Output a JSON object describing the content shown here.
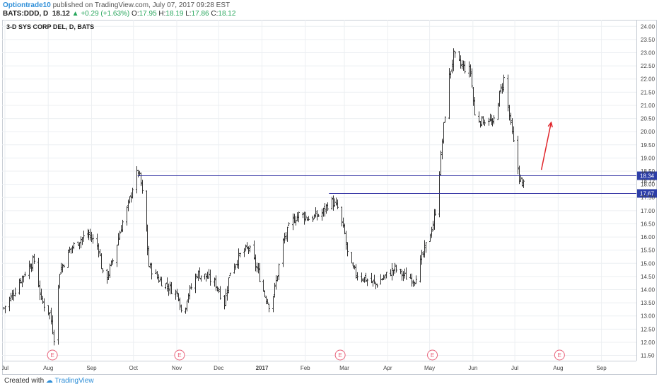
{
  "header": {
    "author": "Optiontrade10",
    "published": "published on TradingView.com, July 07, 2017 09:28 EST",
    "symbol": "BATS:DDD, D",
    "last": "18.12",
    "change_arrow": "▲",
    "change": "+0.29 (+1.63%)",
    "o_label": "O:",
    "o_value": "17.95",
    "h_label": "H:",
    "h_value": "18.19",
    "l_label": "L:",
    "l_value": "17.86",
    "c_label": "C:",
    "c_value": "18.12"
  },
  "footer": {
    "created_with": "Created with",
    "brand": "TradingView"
  },
  "colors": {
    "bar": "#333333",
    "level_line": "#2c2ca0",
    "price_tag_bg": "#2c3ea8",
    "arrow": "#e0242a",
    "earnings": "#e8627a",
    "grid": "#eceff2"
  },
  "chart_data": {
    "type": "ohlc",
    "title": "3-D SYS CORP DEL, D, BATS",
    "ylim": [
      11.3,
      24.25
    ],
    "yticks": [
      "11.50",
      "12.00",
      "12.50",
      "13.00",
      "13.50",
      "14.00",
      "14.50",
      "15.00",
      "15.50",
      "16.00",
      "16.50",
      "17.00",
      "17.50",
      "18.00",
      "18.12",
      "18.50",
      "19.00",
      "19.50",
      "20.00",
      "20.50",
      "21.00",
      "21.50",
      "22.00",
      "22.50",
      "23.00",
      "23.50",
      "24.00"
    ],
    "xlim": [
      "2016-06-29",
      "2017-09-26"
    ],
    "xticks": [
      {
        "date": "2016-07-01",
        "label": "Jul"
      },
      {
        "date": "2016-08-01",
        "label": "Aug"
      },
      {
        "date": "2016-09-01",
        "label": "Sep"
      },
      {
        "date": "2016-10-01",
        "label": "Oct"
      },
      {
        "date": "2016-11-01",
        "label": "Nov"
      },
      {
        "date": "2016-12-01",
        "label": "Dec"
      },
      {
        "date": "2017-01-01",
        "label": "2017"
      },
      {
        "date": "2017-02-01",
        "label": "Feb"
      },
      {
        "date": "2017-03-01",
        "label": "Mar"
      },
      {
        "date": "2017-04-01",
        "label": "Apr"
      },
      {
        "date": "2017-05-01",
        "label": "May"
      },
      {
        "date": "2017-06-01",
        "label": "Jun"
      },
      {
        "date": "2017-07-01",
        "label": "Jul"
      },
      {
        "date": "2017-08-01",
        "label": "Aug"
      },
      {
        "date": "2017-09-01",
        "label": "Sep"
      }
    ],
    "price_path": [
      [
        "2016-06-30",
        13.3
      ],
      [
        "2016-07-06",
        13.8
      ],
      [
        "2016-07-12",
        14.4
      ],
      [
        "2016-07-18",
        14.9
      ],
      [
        "2016-07-22",
        15.1
      ],
      [
        "2016-07-27",
        13.6
      ],
      [
        "2016-08-02",
        13.1
      ],
      [
        "2016-08-05",
        12.2
      ],
      [
        "2016-08-09",
        14.7
      ],
      [
        "2016-08-16",
        15.5
      ],
      [
        "2016-08-23",
        15.9
      ],
      [
        "2016-08-30",
        16.1
      ],
      [
        "2016-09-06",
        15.6
      ],
      [
        "2016-09-10",
        14.2
      ],
      [
        "2016-09-16",
        15.1
      ],
      [
        "2016-09-22",
        16.4
      ],
      [
        "2016-09-27",
        17.2
      ],
      [
        "2016-10-01",
        18.1
      ],
      [
        "2016-10-04",
        18.5
      ],
      [
        "2016-10-06",
        18.0
      ],
      [
        "2016-10-08",
        17.3
      ],
      [
        "2016-10-10",
        16.2
      ],
      [
        "2016-10-12",
        14.9
      ],
      [
        "2016-10-19",
        14.4
      ],
      [
        "2016-10-26",
        14.1
      ],
      [
        "2016-11-02",
        13.8
      ],
      [
        "2016-11-05",
        12.9
      ],
      [
        "2016-11-08",
        13.7
      ],
      [
        "2016-11-15",
        14.6
      ],
      [
        "2016-11-22",
        14.5
      ],
      [
        "2016-11-29",
        14.2
      ],
      [
        "2016-12-05",
        13.5
      ],
      [
        "2016-12-09",
        14.7
      ],
      [
        "2016-12-16",
        15.3
      ],
      [
        "2016-12-22",
        15.6
      ],
      [
        "2016-12-28",
        14.8
      ],
      [
        "2017-01-03",
        13.8
      ],
      [
        "2017-01-07",
        13.3
      ],
      [
        "2017-01-11",
        14.3
      ],
      [
        "2017-01-16",
        15.8
      ],
      [
        "2017-01-22",
        16.6
      ],
      [
        "2017-01-28",
        16.9
      ],
      [
        "2017-02-03",
        16.7
      ],
      [
        "2017-02-09",
        16.8
      ],
      [
        "2017-02-13",
        16.9
      ],
      [
        "2017-02-19",
        17.4
      ],
      [
        "2017-02-24",
        17.1
      ],
      [
        "2017-03-01",
        16.1
      ],
      [
        "2017-03-04",
        15.0
      ],
      [
        "2017-03-09",
        14.6
      ],
      [
        "2017-03-16",
        14.4
      ],
      [
        "2017-03-23",
        14.2
      ],
      [
        "2017-03-30",
        14.5
      ],
      [
        "2017-04-06",
        14.8
      ],
      [
        "2017-04-13",
        14.5
      ],
      [
        "2017-04-20",
        14.4
      ],
      [
        "2017-04-27",
        15.5
      ],
      [
        "2017-05-03",
        16.5
      ],
      [
        "2017-05-05",
        17.0
      ],
      [
        "2017-05-08",
        18.5
      ],
      [
        "2017-05-11",
        20.2
      ],
      [
        "2017-05-15",
        22.1
      ],
      [
        "2017-05-18",
        22.9
      ],
      [
        "2017-05-22",
        22.6
      ],
      [
        "2017-05-26",
        22.4
      ],
      [
        "2017-05-30",
        22.3
      ],
      [
        "2017-06-02",
        20.6
      ],
      [
        "2017-06-07",
        20.4
      ],
      [
        "2017-06-12",
        20.5
      ],
      [
        "2017-06-15",
        20.2
      ],
      [
        "2017-06-19",
        21.2
      ],
      [
        "2017-06-23",
        22.0
      ],
      [
        "2017-06-27",
        20.6
      ],
      [
        "2017-07-01",
        19.2
      ],
      [
        "2017-07-04",
        18.3
      ],
      [
        "2017-07-06",
        17.95
      ],
      [
        "2017-07-07",
        18.12
      ]
    ],
    "last_bar": {
      "date": "2017-07-07",
      "open": 17.95,
      "high": 18.19,
      "low": 17.86,
      "close": 18.12
    },
    "levels": [
      {
        "price": 18.34,
        "label": "18.34",
        "from": "2016-10-04"
      },
      {
        "price": 17.67,
        "label": "17.67",
        "from": "2017-02-18"
      }
    ],
    "last_price_label": "18.12",
    "earnings_markers": [
      {
        "date": "2016-08-04",
        "label": "E"
      },
      {
        "date": "2016-11-03",
        "label": "E"
      },
      {
        "date": "2017-02-26",
        "label": "E"
      },
      {
        "date": "2017-05-03",
        "label": "E"
      },
      {
        "date": "2017-08-02",
        "label": "E"
      }
    ],
    "arrow": {
      "from": [
        "2017-07-20",
        18.55
      ],
      "to": [
        "2017-07-27",
        20.35
      ]
    },
    "grid": true
  }
}
